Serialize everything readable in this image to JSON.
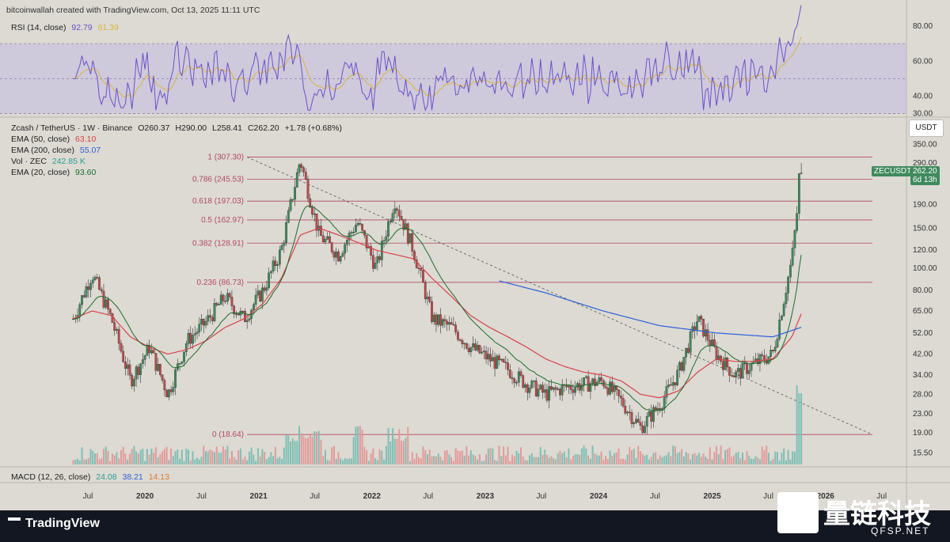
{
  "header": {
    "author_line": "bitcoinwallah created with TradingView.com, Oct 13, 2025 11:11 UTC"
  },
  "rsi": {
    "label": "RSI (14, close)",
    "value": "92.79",
    "ma_value": "61.39",
    "axis_ticks": [
      "80.00",
      "60.00",
      "40.00",
      "30.00"
    ]
  },
  "price_panel": {
    "symbol_line": "Zcash / TetherUS · 1W · Binance",
    "open": "O260.37",
    "high": "H290.00",
    "low": "L258.41",
    "close": "C262.20",
    "change": "+1.78 (+0.68%)",
    "indicators": [
      {
        "label": "EMA (50, close)",
        "value": "63.10",
        "color": "#d9434a"
      },
      {
        "label": "EMA (200, close)",
        "value": "55.07",
        "color": "#2f5fd6"
      },
      {
        "label": "Vol · ZEC",
        "value": "242.85",
        "unit": "K",
        "color": "#2a9d8f"
      },
      {
        "label": "EMA (20, close)",
        "value": "93.60",
        "color": "#1e6b2e"
      }
    ],
    "currency_button": "USDT",
    "price_badge": {
      "ticker": "ZECUSDT",
      "price": "262.20",
      "countdown": "6d 13h"
    },
    "y_axis_ticks": [
      "350.00",
      "290.00",
      "190.00",
      "150.00",
      "120.00",
      "100.00",
      "80.00",
      "65.00",
      "52.00",
      "42.00",
      "34.00",
      "28.00",
      "23.00",
      "19.00",
      "15.50"
    ],
    "fib_levels": [
      {
        "label": "1 (307.30)",
        "value": 307.3
      },
      {
        "label": "0.786 (245.53)",
        "value": 245.53
      },
      {
        "label": "0.618 (197.03)",
        "value": 197.03
      },
      {
        "label": "0.5 (162.97)",
        "value": 162.97
      },
      {
        "label": "0.382 (128.91)",
        "value": 128.91
      },
      {
        "label": "0.236 (86.73)",
        "value": 86.73
      },
      {
        "label": "0 (18.64)",
        "value": 18.64
      }
    ]
  },
  "macd": {
    "label": "MACD (12, 26, close)",
    "values": [
      "24.08",
      "38.21",
      "14.13"
    ]
  },
  "x_axis": {
    "labels": [
      "Jul",
      "2020",
      "Jul",
      "2021",
      "Jul",
      "2022",
      "Jul",
      "2023",
      "Jul",
      "2024",
      "Jul",
      "2025",
      "Jul",
      "2026",
      "Jul"
    ]
  },
  "footer": {
    "brand": "TradingView",
    "watermark_cn": "量链科技",
    "watermark_url": "QFSP.NET"
  },
  "chart_data": {
    "type": "candlestick",
    "title": "Zcash / TetherUS · 1W · Binance",
    "scale": "log",
    "ylim": [
      14,
      380
    ],
    "series": [
      {
        "name": "ZECUSDT",
        "x": [
          "2019-05",
          "2019-07",
          "2019-09",
          "2019-11",
          "2020-01",
          "2020-03",
          "2020-05",
          "2020-07",
          "2020-09",
          "2020-11",
          "2021-01",
          "2021-03",
          "2021-05",
          "2021-07",
          "2021-09",
          "2021-11",
          "2022-01",
          "2022-03",
          "2022-05",
          "2022-07",
          "2022-09",
          "2022-11",
          "2023-01",
          "2023-03",
          "2023-05",
          "2023-07",
          "2023-09",
          "2023-11",
          "2024-01",
          "2024-03",
          "2024-05",
          "2024-07",
          "2024-09",
          "2024-11",
          "2025-01",
          "2025-03",
          "2025-05",
          "2025-07",
          "2025-09",
          "2025-10"
        ],
        "values": [
          60,
          95,
          60,
          32,
          45,
          28,
          48,
          58,
          75,
          60,
          80,
          120,
          300,
          140,
          115,
          160,
          100,
          200,
          120,
          60,
          55,
          45,
          40,
          36,
          31,
          28,
          30,
          31,
          32,
          26,
          20,
          25,
          35,
          60,
          42,
          34,
          38,
          42,
          110,
          262.2
        ]
      },
      {
        "name": "EMA (50, close)",
        "values": [
          60,
          65,
          62,
          50,
          45,
          42,
          44,
          48,
          55,
          60,
          70,
          90,
          140,
          150,
          140,
          130,
          120,
          115,
          110,
          90,
          75,
          62,
          55,
          50,
          45,
          40,
          37,
          35,
          34,
          32,
          28,
          27,
          29,
          35,
          40,
          39,
          39,
          40,
          50,
          63.1
        ]
      },
      {
        "name": "EMA (200, close)",
        "x": [
          "2023-02",
          "2023-07",
          "2024-01",
          "2024-07",
          "2025-01",
          "2025-07",
          "2025-10"
        ],
        "values": [
          88,
          78,
          65,
          56,
          52,
          50,
          55.07
        ]
      }
    ],
    "annotations": [
      "1 (307.30)",
      "0.786 (245.53)",
      "0.618 (197.03)",
      "0.5 (162.97)",
      "0.382 (128.91)",
      "0.236 (86.73)",
      "0 (18.64)"
    ]
  }
}
